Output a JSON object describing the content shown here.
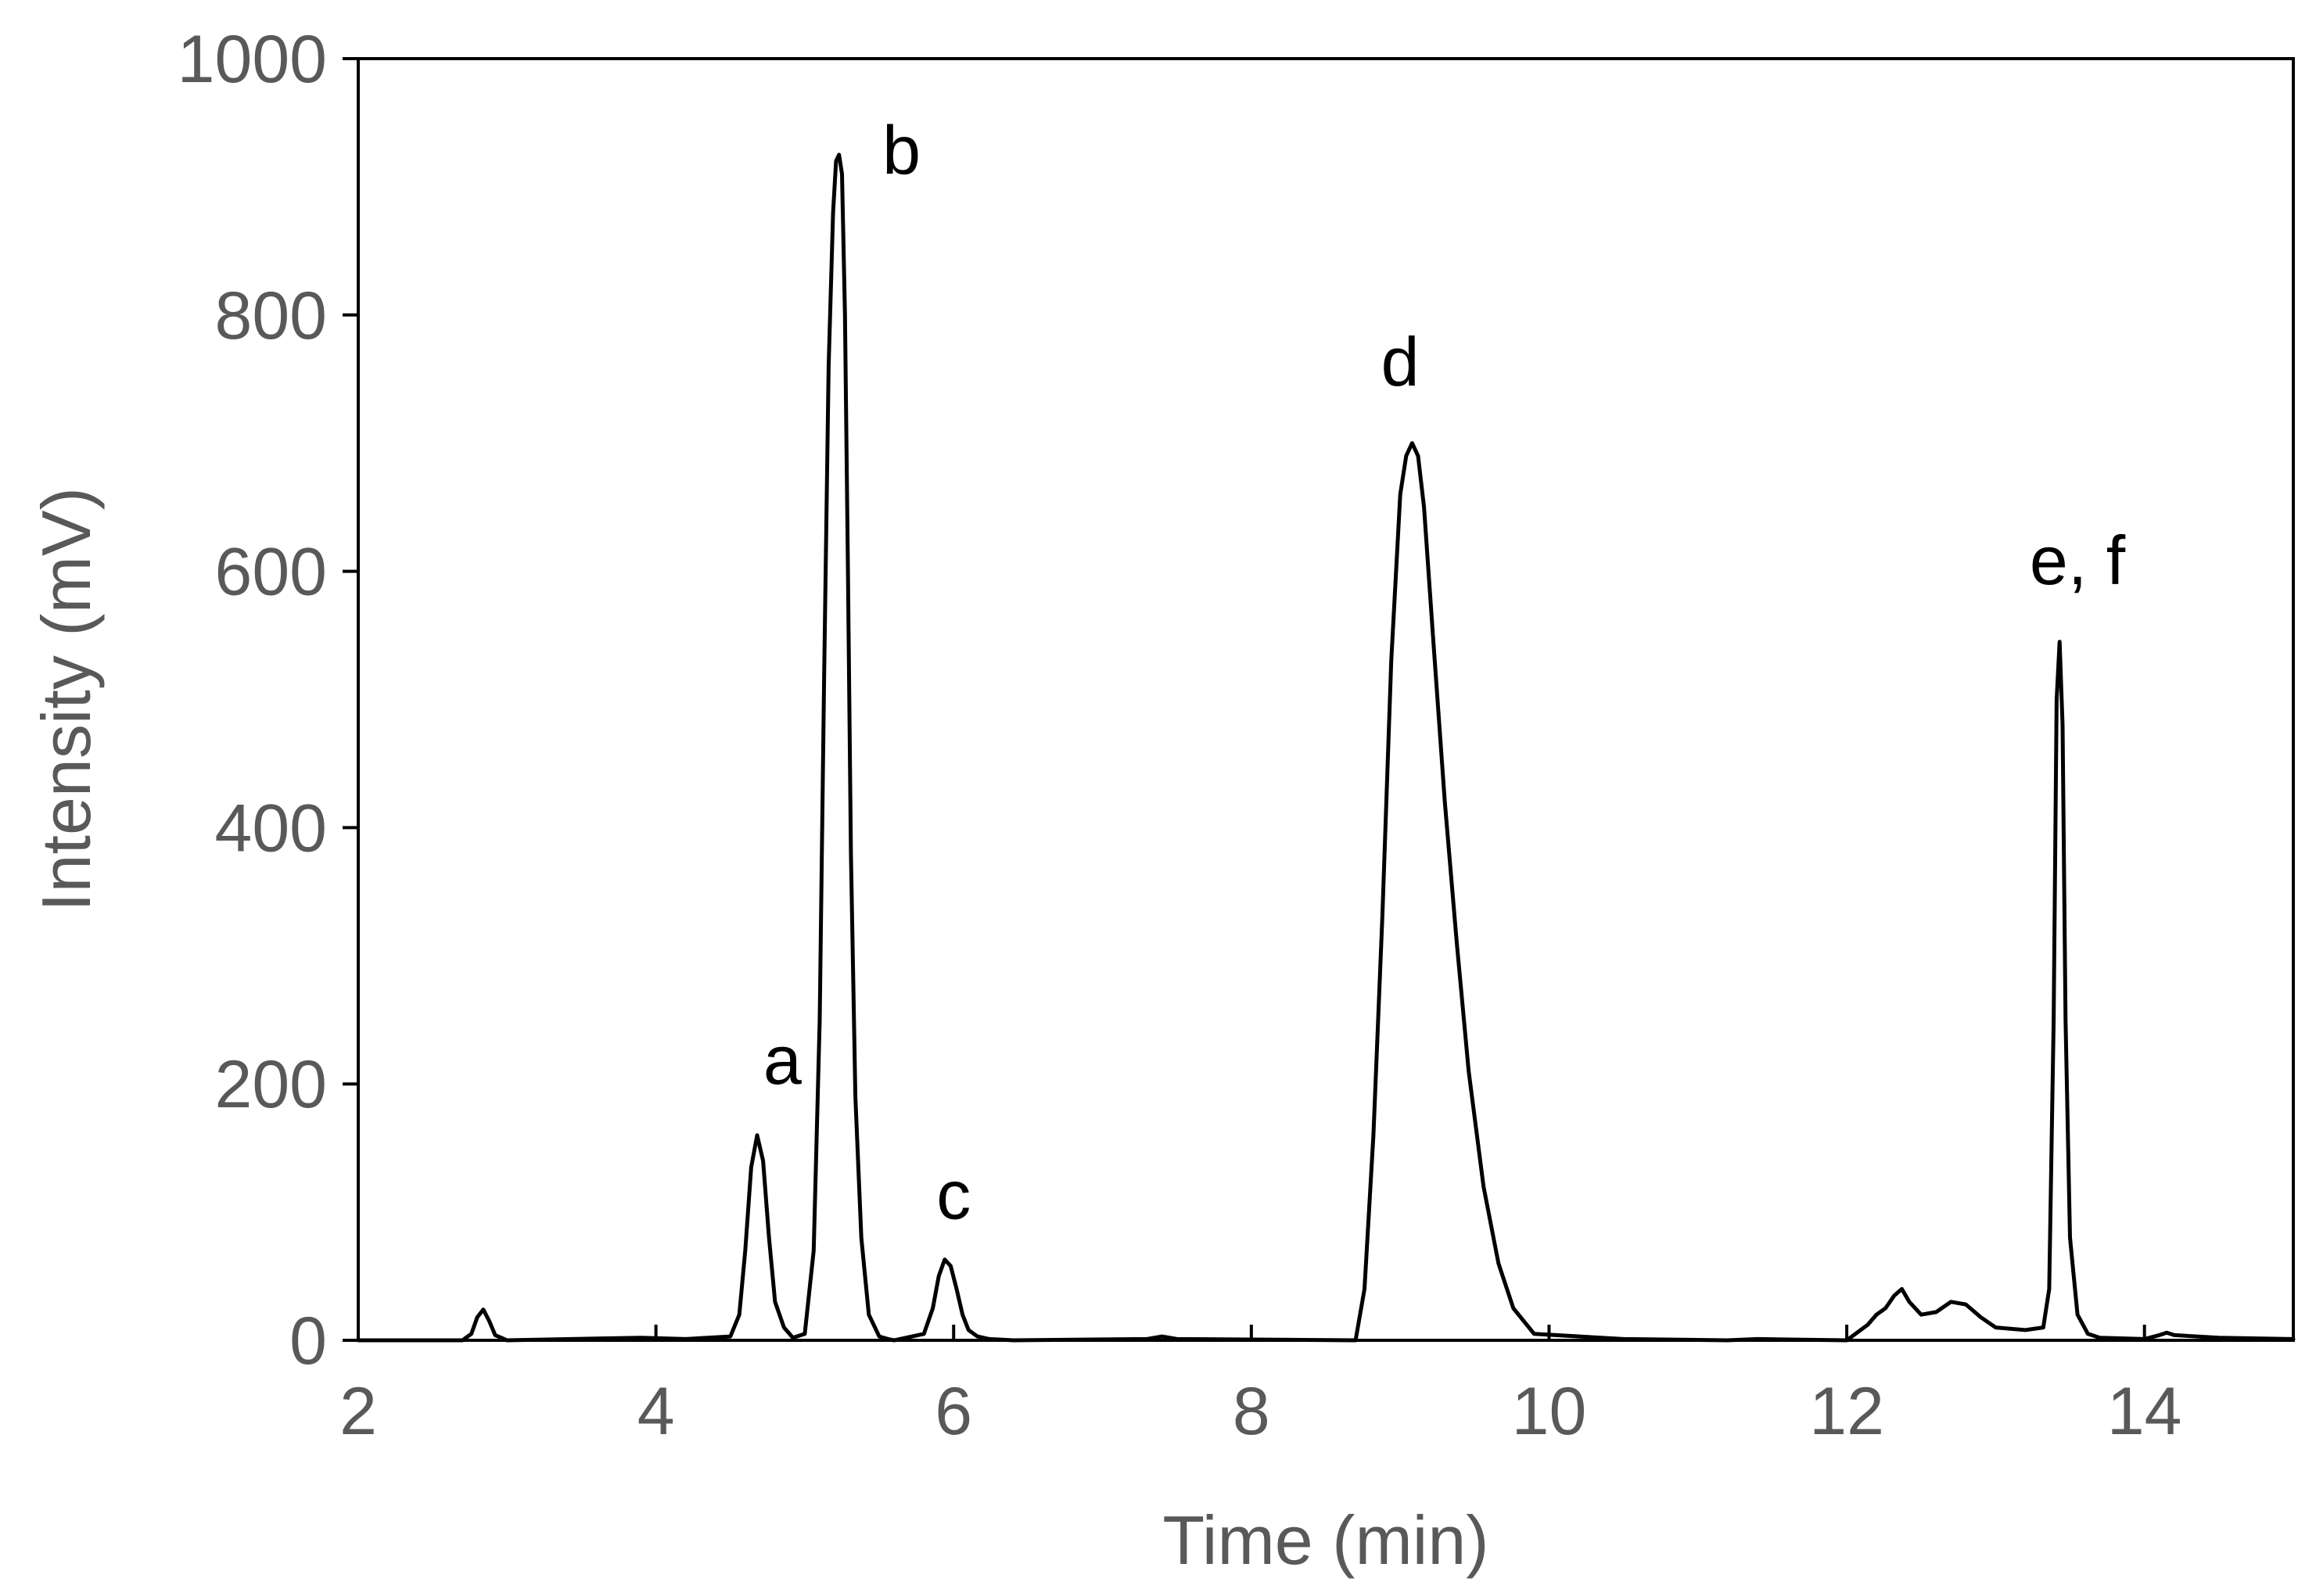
{
  "chart_data": {
    "type": "line",
    "title": "",
    "xlabel": "Time (min)",
    "ylabel": "Intensity (mV)",
    "xlim": [
      2,
      15
    ],
    "ylim": [
      0,
      1000
    ],
    "x_ticks": [
      2,
      4,
      6,
      8,
      10,
      12,
      14
    ],
    "y_ticks": [
      0,
      200,
      400,
      600,
      800,
      1000
    ],
    "grid": false,
    "legend": "none",
    "line_color": "#000000",
    "series": [
      {
        "x": [
          2.0,
          2.7,
          2.76,
          2.8,
          2.84,
          2.88,
          2.92,
          3.0,
          3.9,
          4.2,
          4.5,
          4.56,
          4.6,
          4.64,
          4.68,
          4.72,
          4.76,
          4.8,
          4.86,
          4.92,
          5.0,
          5.06,
          5.1,
          5.13,
          5.16,
          5.19,
          5.21,
          5.23,
          5.25,
          5.27,
          5.29,
          5.31,
          5.34,
          5.38,
          5.43,
          5.5,
          5.56,
          5.6,
          5.8,
          5.86,
          5.9,
          5.94,
          5.98,
          6.02,
          6.06,
          6.1,
          6.16,
          6.24,
          6.4,
          7.3,
          7.4,
          7.5,
          8.7,
          8.76,
          8.82,
          8.88,
          8.94,
          9.0,
          9.04,
          9.08,
          9.12,
          9.16,
          9.22,
          9.3,
          9.38,
          9.46,
          9.56,
          9.66,
          9.76,
          9.9,
          10.5,
          11.2,
          11.4,
          12.0,
          12.14,
          12.2,
          12.26,
          12.32,
          12.37,
          12.42,
          12.5,
          12.6,
          12.7,
          12.8,
          12.9,
          13.0,
          13.2,
          13.32,
          13.36,
          13.39,
          13.41,
          13.43,
          13.45,
          13.47,
          13.5,
          13.55,
          13.62,
          13.7,
          14.0,
          14.1,
          14.15,
          14.2,
          14.5,
          15.0
        ],
        "y": [
          0,
          0,
          5,
          18,
          24,
          15,
          4,
          0,
          2,
          1,
          3,
          20,
          70,
          135,
          160,
          140,
          80,
          30,
          10,
          2,
          5,
          70,
          250,
          520,
          760,
          880,
          920,
          925,
          910,
          800,
          600,
          380,
          190,
          80,
          20,
          3,
          1,
          0,
          5,
          25,
          50,
          63,
          58,
          40,
          20,
          8,
          3,
          1,
          0,
          1,
          3,
          1,
          0,
          40,
          160,
          330,
          530,
          660,
          690,
          700,
          690,
          650,
          550,
          420,
          310,
          210,
          120,
          60,
          25,
          5,
          1,
          0,
          1,
          0,
          12,
          20,
          25,
          35,
          40,
          30,
          20,
          22,
          30,
          28,
          18,
          10,
          8,
          10,
          40,
          250,
          500,
          545,
          480,
          250,
          80,
          20,
          5,
          2,
          1,
          4,
          6,
          4,
          2,
          1
        ]
      }
    ],
    "annotations": [
      {
        "text": "a",
        "x": 4.85,
        "y": 200
      },
      {
        "text": "b",
        "x": 5.65,
        "y": 910
      },
      {
        "text": "c",
        "x": 6.0,
        "y": 95
      },
      {
        "text": "d",
        "x": 9.0,
        "y": 745
      },
      {
        "text": "e, f",
        "x": 13.55,
        "y": 590
      }
    ]
  }
}
